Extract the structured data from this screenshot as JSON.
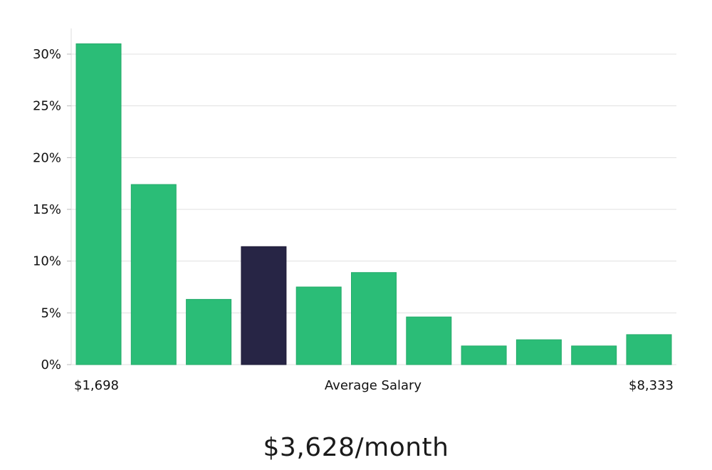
{
  "chart_data": {
    "type": "bar",
    "ylim": [
      0,
      32.5
    ],
    "y_ticks": [
      0,
      5,
      10,
      15,
      20,
      25,
      30
    ],
    "y_tick_labels": [
      "0%",
      "5%",
      "10%",
      "15%",
      "20%",
      "25%",
      "30%"
    ],
    "values": [
      31,
      17.4,
      6.3,
      11.4,
      7.5,
      8.9,
      4.6,
      1.8,
      2.4,
      1.8,
      2.9
    ],
    "highlight_index": 3,
    "x_min_label": "$1,698",
    "x_center_label": "Average Salary",
    "x_max_label": "$8,333",
    "grid": true,
    "colors": {
      "bar": "#2bbd77",
      "highlight": "#272545",
      "grid": "#e0e0e0",
      "axis": "#dddddd"
    }
  },
  "headline": "$3,628/month"
}
